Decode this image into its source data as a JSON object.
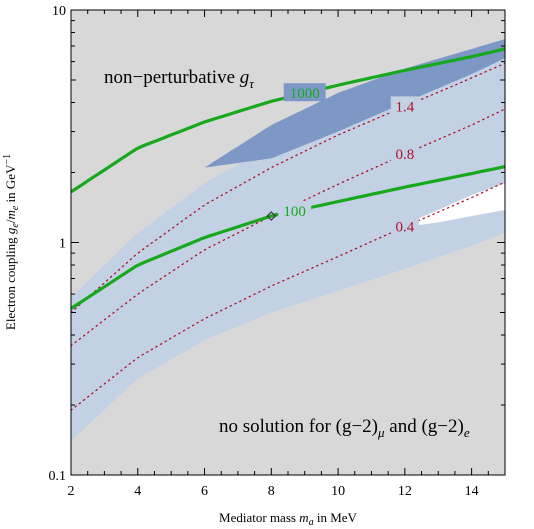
{
  "chart_data": {
    "type": "line",
    "xlabel": "Mediator mass mₐ in MeV",
    "xlabel_parts": [
      "Mediator mass ",
      "m",
      "a",
      " in MeV"
    ],
    "ylabel_parts": [
      "Electron coupling ",
      "g",
      "e",
      "/",
      "m",
      "e",
      " in GeV",
      "−1"
    ],
    "xlim": [
      2,
      15
    ],
    "ylim": [
      0.1,
      10
    ],
    "yscale": "log",
    "x_ticks": [
      2,
      4,
      6,
      8,
      10,
      12,
      14
    ],
    "x_tick_labels": [
      "2",
      "4",
      "6",
      "8",
      "10",
      "12",
      "14"
    ],
    "y_ticks": [
      0.1,
      1,
      10
    ],
    "y_tick_labels": [
      "0.1",
      "1",
      "10"
    ],
    "grid": false,
    "colors": {
      "background": "#d8d8d8",
      "light_band": "#c3d1e4",
      "dark_band": "#7e98c6",
      "white_region": "#ffffff",
      "green": "#17a81e",
      "red": "#b0112a",
      "marker": "#333333"
    },
    "annotations": {
      "nonpert_text": "non−perturbative ",
      "nonpert_g": "g",
      "nonpert_sub": "τ",
      "nosol_a": "no solution for (g−2)",
      "nosol_mu": "μ",
      "nosol_b": " and (g−2)",
      "nosol_e": "e"
    },
    "light_band": {
      "x": [
        2,
        4,
        6,
        8,
        10,
        12,
        14,
        15
      ],
      "upper": [
        0.58,
        1.1,
        1.8,
        2.6,
        3.5,
        4.5,
        5.7,
        6.4
      ],
      "lower": [
        0.14,
        0.26,
        0.38,
        0.5,
        0.62,
        0.77,
        0.97,
        1.1
      ]
    },
    "dark_band": {
      "x": [
        6,
        8,
        10,
        12,
        14,
        15
      ],
      "upper": [
        2.1,
        3.2,
        4.4,
        5.6,
        6.8,
        7.5
      ],
      "lower": [
        2.1,
        2.3,
        3.0,
        4.0,
        5.3,
        6.2
      ]
    },
    "white_region": {
      "x": [
        11.7,
        13,
        14,
        15
      ],
      "upper": [
        1.15,
        1.38,
        1.6,
        1.8
      ],
      "lower": [
        1.15,
        1.22,
        1.3,
        1.38
      ]
    },
    "green_contours": [
      {
        "label": "1000",
        "label_x": 9,
        "x": [
          2,
          4,
          6,
          8,
          10,
          12,
          14,
          15
        ],
        "y": [
          1.65,
          2.55,
          3.3,
          4.05,
          4.75,
          5.5,
          6.3,
          6.8
        ]
      },
      {
        "label": "100",
        "label_x": 8.7,
        "x": [
          2,
          4,
          6,
          8,
          10,
          12,
          14,
          15
        ],
        "y": [
          0.52,
          0.8,
          1.05,
          1.3,
          1.5,
          1.73,
          1.98,
          2.12
        ]
      }
    ],
    "red_contours": [
      {
        "label": "1.4",
        "label_x": 12,
        "x": [
          2,
          4,
          6,
          8,
          10,
          12,
          14,
          15
        ],
        "y": [
          0.5,
          0.9,
          1.45,
          2.1,
          2.9,
          3.85,
          5.1,
          5.9
        ]
      },
      {
        "label": "0.8",
        "label_x": 12,
        "x": [
          2,
          4,
          6,
          8,
          10,
          12,
          14,
          15
        ],
        "y": [
          0.36,
          0.6,
          0.93,
          1.3,
          1.78,
          2.4,
          3.2,
          3.75
        ]
      },
      {
        "label": "0.4",
        "label_x": 12,
        "x": [
          2,
          4,
          6,
          8,
          10,
          12,
          14,
          15
        ],
        "y": [
          0.19,
          0.32,
          0.47,
          0.65,
          0.87,
          1.17,
          1.56,
          1.82
        ]
      }
    ],
    "marker": {
      "x": 8,
      "y": 1.3
    }
  }
}
